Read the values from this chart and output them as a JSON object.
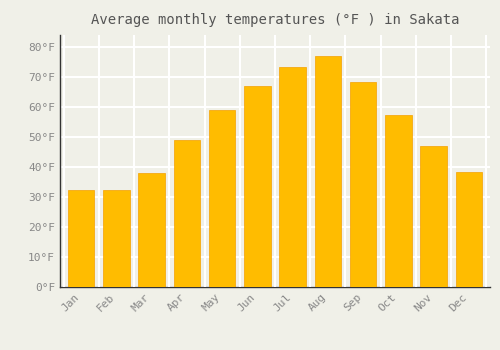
{
  "title": "Average monthly temperatures (°F ) in Sakata",
  "months": [
    "Jan",
    "Feb",
    "Mar",
    "Apr",
    "May",
    "Jun",
    "Jul",
    "Aug",
    "Sep",
    "Oct",
    "Nov",
    "Dec"
  ],
  "values": [
    32.5,
    32.5,
    38.0,
    49.0,
    59.0,
    67.0,
    73.5,
    77.0,
    68.5,
    57.5,
    47.0,
    38.5
  ],
  "bar_color_top": "#FFB900",
  "bar_color_bottom": "#FFCC44",
  "background_color": "#F0F0E8",
  "plot_bg_color": "#F0F0E8",
  "grid_color": "#FFFFFF",
  "text_color": "#888888",
  "title_color": "#555555",
  "ytick_labels": [
    "0°F",
    "10°F",
    "20°F",
    "30°F",
    "40°F",
    "50°F",
    "60°F",
    "70°F",
    "80°F"
  ],
  "ytick_values": [
    0,
    10,
    20,
    30,
    40,
    50,
    60,
    70,
    80
  ],
  "ylim": [
    0,
    84
  ],
  "title_fontsize": 10,
  "tick_fontsize": 8,
  "bar_width": 0.75
}
